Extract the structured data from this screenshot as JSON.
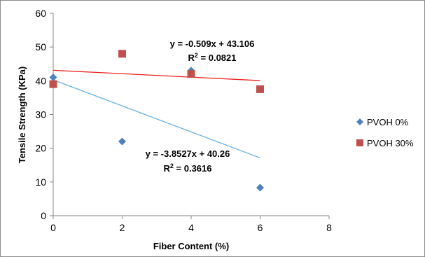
{
  "chart_data": {
    "type": "scatter",
    "xlabel": "Fiber Content (%)",
    "ylabel": "Tensile Strength (KPa)",
    "xlim": [
      0,
      8
    ],
    "ylim": [
      0,
      60
    ],
    "x_ticks": [
      "0",
      "2",
      "4",
      "6",
      "8"
    ],
    "y_ticks": [
      "0",
      "10",
      "20",
      "30",
      "40",
      "50",
      "60"
    ],
    "grid": false,
    "legend_position": "right",
    "series": [
      {
        "name": "PVOH 0%",
        "marker": "diamond",
        "color": "#4F81BD",
        "points": [
          [
            0,
            41
          ],
          [
            2,
            22
          ],
          [
            4,
            43
          ],
          [
            6,
            8.3
          ]
        ],
        "trendline": {
          "slope": -3.8527,
          "intercept": 40.26,
          "x_range": [
            0,
            6
          ],
          "color": "#6BAED6",
          "equation": "y = -3.8527x + 40.26",
          "r2_prefix": "R",
          "r2_suffix": " = 0.3616"
        }
      },
      {
        "name": "PVOH 30%",
        "marker": "square",
        "color": "#C0504D",
        "points": [
          [
            0,
            39
          ],
          [
            2,
            48
          ],
          [
            4,
            42
          ],
          [
            6,
            37.5
          ]
        ],
        "trendline": {
          "slope": -0.509,
          "intercept": 43.106,
          "x_range": [
            0,
            6
          ],
          "color": "#E8211C",
          "equation": "y = -0.509x + 43.106",
          "r2_prefix": "R",
          "r2_suffix": " = 0.0821"
        }
      }
    ]
  }
}
